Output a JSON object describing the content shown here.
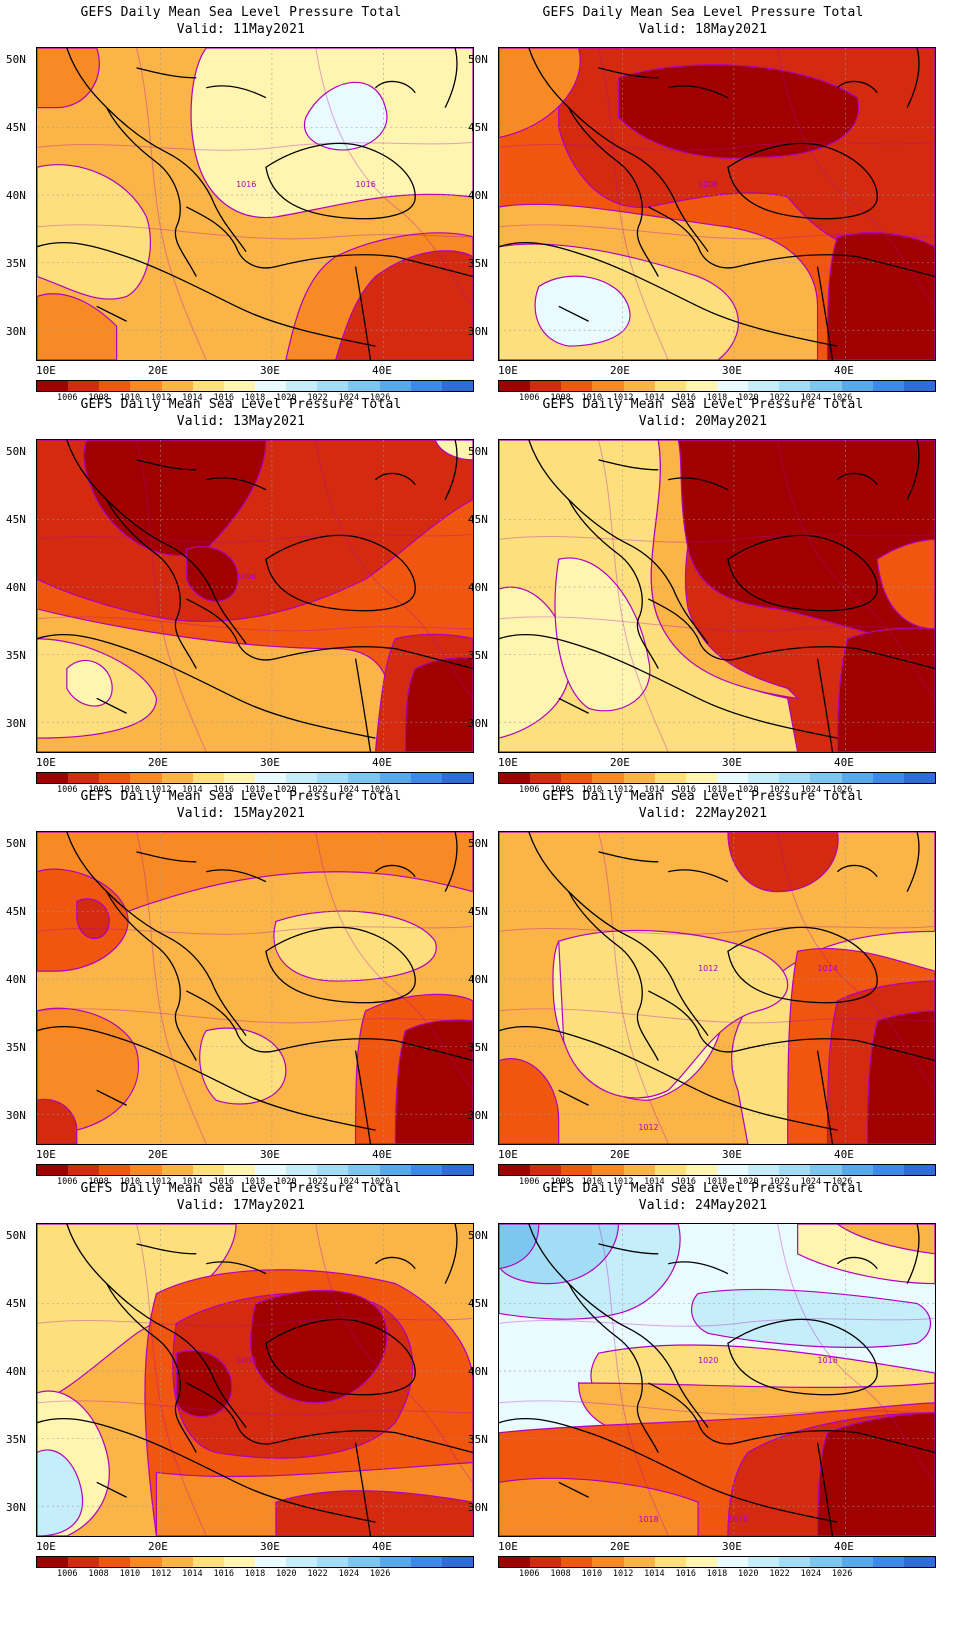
{
  "product_title": "GEFS Daily Mean Sea Level Pressure Total",
  "panels": [
    {
      "valid": "Valid: 11May2021",
      "contour_labels": [
        "1016",
        "1016"
      ]
    },
    {
      "valid": "Valid: 18May2021",
      "contour_labels": [
        "1008"
      ]
    },
    {
      "valid": "Valid: 13May2021",
      "contour_labels": [
        "1006"
      ]
    },
    {
      "valid": "Valid: 20May2021",
      "contour_labels": []
    },
    {
      "valid": "Valid: 15May2021",
      "contour_labels": []
    },
    {
      "valid": "Valid: 22May2021",
      "contour_labels": [
        "1012",
        "1014",
        "1012"
      ]
    },
    {
      "valid": "Valid: 17May2021",
      "contour_labels": [
        "1008"
      ]
    },
    {
      "valid": "Valid: 24May2021",
      "contour_labels": [
        "1020",
        "1018",
        "1018",
        "1016"
      ]
    }
  ],
  "lat_labels": [
    "50N",
    "45N",
    "40N",
    "35N",
    "30N"
  ],
  "lon_labels": [
    "10E",
    "20E",
    "30E",
    "40E"
  ],
  "colorbar": {
    "levels": [
      "1006",
      "1008",
      "1010",
      "1012",
      "1014",
      "1016",
      "1018",
      "1020",
      "1022",
      "1024",
      "1026"
    ],
    "colors": [
      "#a00000",
      "#d42a10",
      "#f0560f",
      "#f88a25",
      "#fbb448",
      "#fde07d",
      "#fff5b0",
      "#e9fbff",
      "#c6eefa",
      "#a2dcf5",
      "#7dc6f0",
      "#58a9ec",
      "#3a8ae6",
      "#2e6cd8"
    ]
  },
  "contour_color": "#b000c0",
  "border_color": "#000000"
}
